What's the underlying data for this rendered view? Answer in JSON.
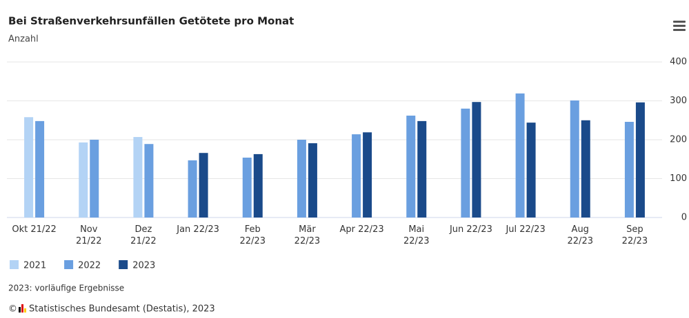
{
  "chart_data": {
    "type": "bar",
    "title": "Bei Straßenverkehrsunfällen Getötete pro Monat",
    "subtitle": "Anzahl",
    "categories": [
      "Okt 21/22",
      "Nov\n21/22",
      "Dez\n21/22",
      "Jan 22/23",
      "Feb\n22/23",
      "Mär\n22/23",
      "Apr 22/23",
      "Mai\n22/23",
      "Jun 22/23",
      "Jul 22/23",
      "Aug\n22/23",
      "Sep\n22/23"
    ],
    "series": [
      {
        "name": "2021",
        "color": "#b3d3f5",
        "values": [
          258,
          193,
          207,
          null,
          null,
          null,
          null,
          null,
          null,
          null,
          null,
          null
        ]
      },
      {
        "name": "2022",
        "color": "#6a9fe0",
        "values": [
          248,
          200,
          189,
          147,
          154,
          200,
          214,
          262,
          280,
          319,
          301,
          246
        ]
      },
      {
        "name": "2023",
        "color": "#1a4a8a",
        "values": [
          null,
          null,
          null,
          166,
          163,
          191,
          219,
          248,
          297,
          244,
          250,
          296
        ]
      }
    ],
    "ylim": [
      0,
      400
    ],
    "yticks": [
      0,
      100,
      200,
      300,
      400
    ],
    "grid": true,
    "note": "2023: vorläufige Ergebnisse",
    "copyright_mark": "©",
    "source": "Statistisches Bundesamt (Destatis), 2023"
  }
}
